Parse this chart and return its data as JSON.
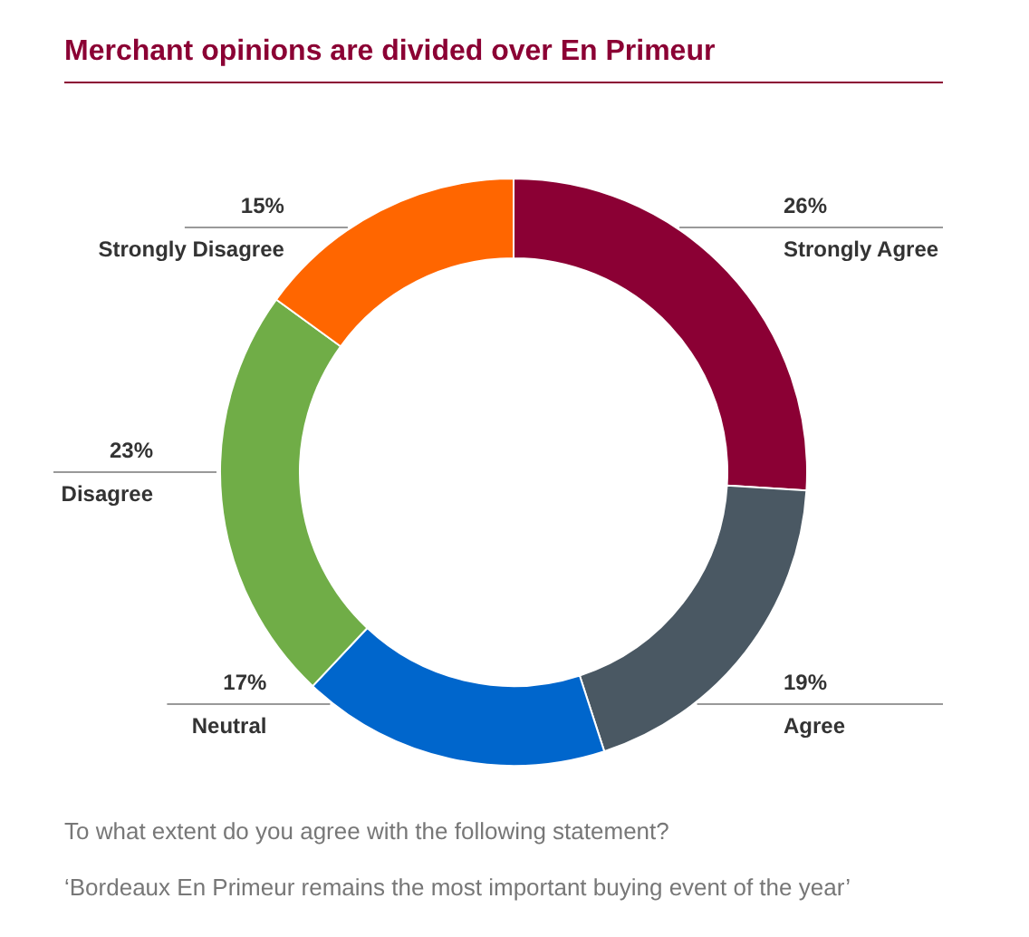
{
  "chart_data": {
    "type": "donut",
    "title": "Merchant opinions are divided over En Primeur",
    "categories": [
      "Strongly Agree",
      "Agree",
      "Neutral",
      "Disagree",
      "Strongly Disagree"
    ],
    "values": [
      26,
      19,
      17,
      23,
      15
    ],
    "colors": [
      "#8b0034",
      "#4a5863",
      "#0066cc",
      "#70ad47",
      "#ff6600"
    ],
    "value_labels": [
      "26%",
      "19%",
      "17%",
      "23%",
      "15%"
    ],
    "annotations": [
      "To what extent do you agree with the following statement?",
      "‘Bordeaux En Primeur remains the most important buying event of the year’"
    ]
  }
}
